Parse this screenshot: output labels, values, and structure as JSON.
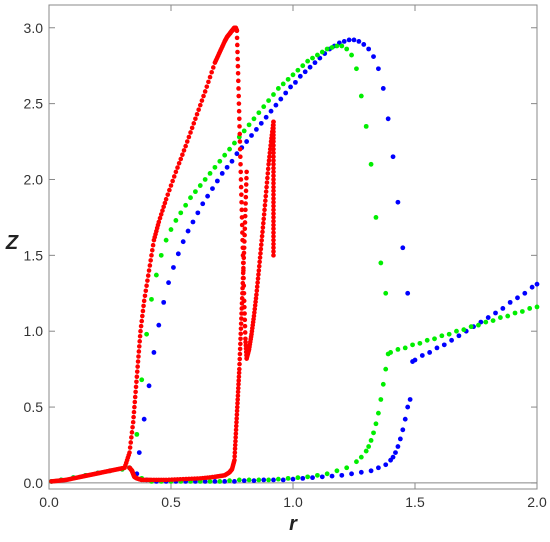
{
  "chart_data": {
    "type": "scatter",
    "title": "",
    "xlabel": "r",
    "ylabel": "Z",
    "xlim": [
      0,
      2.0
    ],
    "ylim": [
      -0.04,
      3.15
    ],
    "x_ticks": [
      "0.0",
      "0.5",
      "1.0",
      "1.5",
      "2.0"
    ],
    "y_ticks": [
      "0.0",
      "0.5",
      "1.0",
      "1.5",
      "2.0",
      "2.5",
      "3.0"
    ],
    "grid": false,
    "legend": "none",
    "colors": {
      "red": "#ff0000",
      "green": "#00ee00",
      "blue": "#0000ff",
      "axes": "#888888"
    },
    "series": [
      {
        "color": "#ff0000",
        "branches": [
          {
            "x": [
              0.01,
              0.04,
              0.07,
              0.1,
              0.13,
              0.16,
              0.19,
              0.22,
              0.25,
              0.28,
              0.31,
              0.33,
              0.345,
              0.355,
              0.365,
              0.375,
              0.39,
              0.41,
              0.43,
              0.45,
              0.48,
              0.52,
              0.56,
              0.6,
              0.64,
              0.68,
              0.7,
              0.72,
              0.73,
              0.74,
              0.745,
              0.75,
              0.755,
              0.76,
              0.765,
              0.77
            ],
            "y": [
              0.01,
              0.015,
              0.02,
              0.03,
              0.04,
              0.05,
              0.06,
              0.07,
              0.08,
              0.09,
              0.1,
              0.2,
              0.4,
              0.6,
              0.8,
              1.0,
              1.2,
              1.4,
              1.6,
              1.72,
              1.87,
              2.05,
              2.22,
              2.4,
              2.58,
              2.77,
              2.84,
              2.91,
              2.94,
              2.96,
              2.97,
              2.98,
              2.99,
              3.0,
              3.0,
              2.98
            ]
          },
          {
            "x": [
              0.77,
              0.775,
              0.78,
              0.785,
              0.79,
              0.795,
              0.8,
              0.805,
              0.81
            ],
            "y": [
              2.98,
              2.7,
              2.4,
              2.1,
              1.8,
              1.5,
              1.2,
              0.95,
              0.82
            ]
          },
          {
            "x": [
              0.81,
              0.82,
              0.83,
              0.84,
              0.85,
              0.86,
              0.87,
              0.88,
              0.89,
              0.9,
              0.91,
              0.92
            ],
            "y": [
              0.82,
              0.88,
              0.98,
              1.1,
              1.24,
              1.4,
              1.57,
              1.74,
              1.92,
              2.1,
              2.25,
              2.38
            ]
          },
          {
            "x": [
              0.92,
              0.92,
              0.92,
              0.92,
              0.92,
              0.92,
              0.92
            ],
            "y": [
              2.38,
              2.25,
              2.1,
              1.95,
              1.8,
              1.65,
              1.5
            ]
          },
          {
            "x": [
              0.33,
              0.34,
              0.345,
              0.35,
              0.36,
              0.38,
              0.42,
              0.48,
              0.55,
              0.62,
              0.68,
              0.72,
              0.74,
              0.75,
              0.76,
              0.765,
              0.77,
              0.775,
              0.78,
              0.785,
              0.79,
              0.795,
              0.8,
              0.805,
              0.81
            ],
            "y": [
              0.1,
              0.08,
              0.06,
              0.04,
              0.03,
              0.02,
              0.02,
              0.02,
              0.025,
              0.03,
              0.04,
              0.05,
              0.07,
              0.09,
              0.15,
              0.3,
              0.45,
              0.6,
              0.75,
              0.95,
              1.15,
              1.35,
              1.55,
              1.8,
              2.05
            ]
          }
        ]
      },
      {
        "color": "#00ee00",
        "branches": [
          {
            "x": [
              0.01,
              0.05,
              0.1,
              0.15,
              0.2,
              0.25,
              0.3,
              0.33
            ],
            "y": [
              0.01,
              0.02,
              0.035,
              0.05,
              0.065,
              0.08,
              0.09,
              0.1
            ]
          },
          {
            "x": [
              0.34,
              0.36,
              0.38,
              0.4,
              0.42,
              0.44,
              0.46,
              0.48,
              0.5,
              0.52,
              0.54,
              0.56,
              0.58,
              0.6,
              0.62,
              0.64,
              0.66,
              0.68,
              0.7,
              0.72,
              0.74,
              0.76,
              0.78,
              0.8,
              0.82,
              0.84,
              0.86,
              0.88,
              0.9,
              0.92,
              0.94,
              0.96,
              0.98,
              1.0,
              1.02,
              1.04,
              1.06,
              1.08,
              1.1,
              1.12,
              1.14,
              1.16,
              1.18,
              1.2,
              1.22,
              1.24,
              1.26,
              1.28,
              1.3,
              1.32,
              1.34,
              1.36,
              1.38
            ],
            "y": [
              0.08,
              0.32,
              0.68,
              0.98,
              1.21,
              1.37,
              1.5,
              1.6,
              1.67,
              1.73,
              1.78,
              1.83,
              1.88,
              1.92,
              1.96,
              2.0,
              2.04,
              2.08,
              2.12,
              2.16,
              2.2,
              2.24,
              2.28,
              2.32,
              2.36,
              2.4,
              2.44,
              2.48,
              2.52,
              2.56,
              2.6,
              2.63,
              2.66,
              2.69,
              2.72,
              2.75,
              2.78,
              2.8,
              2.82,
              2.84,
              2.86,
              2.87,
              2.88,
              2.88,
              2.86,
              2.82,
              2.73,
              2.55,
              2.35,
              2.1,
              1.75,
              1.45,
              1.25
            ]
          },
          {
            "x": [
              0.38,
              0.42,
              0.46,
              0.5,
              0.54,
              0.58,
              0.62,
              0.66,
              0.7,
              0.74,
              0.78,
              0.82,
              0.86,
              0.9,
              0.94,
              0.98,
              1.02,
              1.06,
              1.1,
              1.14,
              1.18,
              1.22,
              1.26,
              1.28,
              1.3,
              1.31,
              1.32,
              1.33,
              1.34,
              1.35,
              1.36,
              1.37,
              1.38,
              1.39
            ],
            "y": [
              0.03,
              0.01,
              0.01,
              0.01,
              0.01,
              0.01,
              0.01,
              0.01,
              0.01,
              0.015,
              0.02,
              0.02,
              0.02,
              0.02,
              0.025,
              0.03,
              0.035,
              0.04,
              0.05,
              0.06,
              0.08,
              0.1,
              0.14,
              0.17,
              0.21,
              0.24,
              0.28,
              0.33,
              0.39,
              0.46,
              0.55,
              0.65,
              0.75,
              0.85
            ]
          },
          {
            "x": [
              1.4,
              1.43,
              1.46,
              1.49,
              1.52,
              1.55,
              1.58,
              1.61,
              1.64,
              1.67,
              1.7,
              1.73,
              1.76,
              1.79,
              1.82,
              1.85,
              1.88,
              1.91,
              1.94,
              1.97,
              2.0
            ],
            "y": [
              0.86,
              0.88,
              0.89,
              0.91,
              0.92,
              0.94,
              0.95,
              0.97,
              0.98,
              1.0,
              1.01,
              1.03,
              1.04,
              1.06,
              1.07,
              1.09,
              1.1,
              1.12,
              1.13,
              1.15,
              1.16
            ]
          }
        ]
      },
      {
        "color": "#0000ff",
        "branches": [
          {
            "x": [
              0.01,
              0.05,
              0.1,
              0.15,
              0.2,
              0.25,
              0.3,
              0.33
            ],
            "y": [
              0.01,
              0.02,
              0.035,
              0.05,
              0.065,
              0.08,
              0.09,
              0.1
            ]
          },
          {
            "x": [
              0.35,
              0.37,
              0.39,
              0.41,
              0.43,
              0.45,
              0.47,
              0.49,
              0.51,
              0.53,
              0.55,
              0.57,
              0.59,
              0.61,
              0.63,
              0.65,
              0.67,
              0.69,
              0.71,
              0.73,
              0.75,
              0.77,
              0.79,
              0.81,
              0.83,
              0.85,
              0.87,
              0.89,
              0.91,
              0.93,
              0.95,
              0.97,
              0.99,
              1.01,
              1.03,
              1.05,
              1.07,
              1.09,
              1.11,
              1.13,
              1.15,
              1.17,
              1.19,
              1.21,
              1.23,
              1.25,
              1.27,
              1.29,
              1.31,
              1.33,
              1.35,
              1.37,
              1.39,
              1.41,
              1.43,
              1.45,
              1.47,
              1.49
            ],
            "y": [
              0.05,
              0.2,
              0.42,
              0.64,
              0.86,
              1.04,
              1.19,
              1.32,
              1.42,
              1.51,
              1.59,
              1.66,
              1.72,
              1.78,
              1.84,
              1.89,
              1.94,
              1.99,
              2.04,
              2.08,
              2.12,
              2.17,
              2.21,
              2.25,
              2.29,
              2.33,
              2.37,
              2.41,
              2.45,
              2.49,
              2.53,
              2.57,
              2.61,
              2.64,
              2.68,
              2.71,
              2.74,
              2.77,
              2.8,
              2.83,
              2.86,
              2.88,
              2.9,
              2.91,
              2.92,
              2.92,
              2.91,
              2.89,
              2.86,
              2.81,
              2.73,
              2.6,
              2.4,
              2.15,
              1.85,
              1.55,
              1.25,
              0.8
            ]
          },
          {
            "x": [
              0.36,
              0.4,
              0.44,
              0.48,
              0.52,
              0.56,
              0.6,
              0.64,
              0.68,
              0.72,
              0.76,
              0.8,
              0.84,
              0.88,
              0.92,
              0.96,
              1.0,
              1.04,
              1.08,
              1.12,
              1.16,
              1.2,
              1.24,
              1.28,
              1.32,
              1.35,
              1.38,
              1.4,
              1.41,
              1.42,
              1.43,
              1.44,
              1.45,
              1.46,
              1.47,
              1.48
            ],
            "y": [
              0.06,
              0.02,
              0.01,
              0.01,
              0.01,
              0.01,
              0.01,
              0.01,
              0.01,
              0.01,
              0.01,
              0.015,
              0.015,
              0.02,
              0.02,
              0.02,
              0.025,
              0.03,
              0.035,
              0.04,
              0.045,
              0.05,
              0.06,
              0.07,
              0.08,
              0.1,
              0.12,
              0.15,
              0.17,
              0.2,
              0.24,
              0.29,
              0.35,
              0.42,
              0.5,
              0.55
            ]
          },
          {
            "x": [
              1.5,
              1.53,
              1.56,
              1.59,
              1.62,
              1.65,
              1.68,
              1.71,
              1.74,
              1.77,
              1.8,
              1.83,
              1.86,
              1.89,
              1.92,
              1.95,
              1.98,
              2.0
            ],
            "y": [
              0.81,
              0.84,
              0.86,
              0.89,
              0.91,
              0.94,
              0.97,
              1.0,
              1.03,
              1.06,
              1.09,
              1.12,
              1.15,
              1.19,
              1.22,
              1.25,
              1.29,
              1.31
            ]
          }
        ]
      }
    ]
  }
}
